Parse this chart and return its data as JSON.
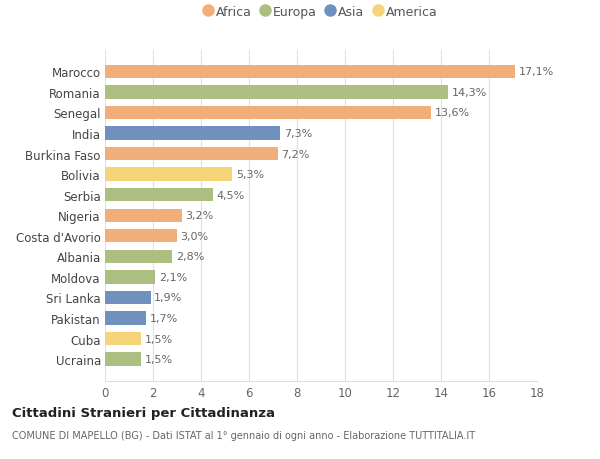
{
  "countries": [
    "Ucraina",
    "Cuba",
    "Pakistan",
    "Sri Lanka",
    "Moldova",
    "Albania",
    "Costa d'Avorio",
    "Nigeria",
    "Serbia",
    "Bolivia",
    "Burkina Faso",
    "India",
    "Senegal",
    "Romania",
    "Marocco"
  ],
  "values": [
    1.5,
    1.5,
    1.7,
    1.9,
    2.1,
    2.8,
    3.0,
    3.2,
    4.5,
    5.3,
    7.2,
    7.3,
    13.6,
    14.3,
    17.1
  ],
  "labels": [
    "1,5%",
    "1,5%",
    "1,7%",
    "1,9%",
    "2,1%",
    "2,8%",
    "3,0%",
    "3,2%",
    "4,5%",
    "5,3%",
    "7,2%",
    "7,3%",
    "13,6%",
    "14,3%",
    "17,1%"
  ],
  "continents": [
    "Europa",
    "America",
    "Asia",
    "Asia",
    "Europa",
    "Europa",
    "Africa",
    "Africa",
    "Europa",
    "America",
    "Africa",
    "Asia",
    "Africa",
    "Europa",
    "Africa"
  ],
  "colors": {
    "Africa": "#F2AE78",
    "Europa": "#ADBF80",
    "Asia": "#7090BE",
    "America": "#F5D47A"
  },
  "legend_order": [
    "Africa",
    "Europa",
    "Asia",
    "America"
  ],
  "title": "Cittadini Stranieri per Cittadinanza",
  "subtitle": "COMUNE DI MAPELLO (BG) - Dati ISTAT al 1° gennaio di ogni anno - Elaborazione TUTTITALIA.IT",
  "xlim": [
    0,
    18
  ],
  "xticks": [
    0,
    2,
    4,
    6,
    8,
    10,
    12,
    14,
    16,
    18
  ],
  "background_color": "#ffffff",
  "grid_color": "#e0e0e0",
  "label_color": "#666666",
  "bar_height": 0.65
}
